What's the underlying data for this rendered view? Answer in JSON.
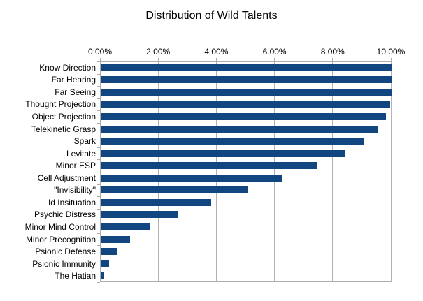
{
  "chart_data": {
    "type": "bar",
    "orientation": "horizontal",
    "title": "Distribution of Wild Talents",
    "categories": [
      "Know Direction",
      "Far Hearing",
      "Far Seeing",
      "Thought Projection",
      "Object Projection",
      "Telekinetic Grasp",
      "Spark",
      "Levitate",
      "Minor ESP",
      "Cell Adjustment",
      "\"Invisibility\"",
      "Id Insituation",
      "Psychic Distress",
      "Minor Mind Control",
      "Minor Precognition",
      "Psionic Defense",
      "Psionic Immunity",
      "The Hatian"
    ],
    "values": [
      10.0,
      10.02,
      10.02,
      9.94,
      9.8,
      9.54,
      9.06,
      8.38,
      7.42,
      6.26,
      5.05,
      3.8,
      2.66,
      1.7,
      1.02,
      0.56,
      0.28,
      0.12
    ],
    "value_unit": "%",
    "xlabel": "",
    "ylabel": "",
    "xlim": [
      0,
      10
    ],
    "x_tick_labels": [
      "0.00%",
      "2.00%",
      "4.00%",
      "6.00%",
      "8.00%",
      "10.00%"
    ],
    "x_tick_values": [
      0,
      2,
      4,
      6,
      8,
      10
    ],
    "x_axis_position": "top",
    "grid": true,
    "legend": false,
    "colors": {
      "bar": "#114681",
      "grid": "#B3B3B3",
      "axis": "#ADADAD",
      "text": "#000000",
      "background": "#FFFFFF"
    }
  }
}
